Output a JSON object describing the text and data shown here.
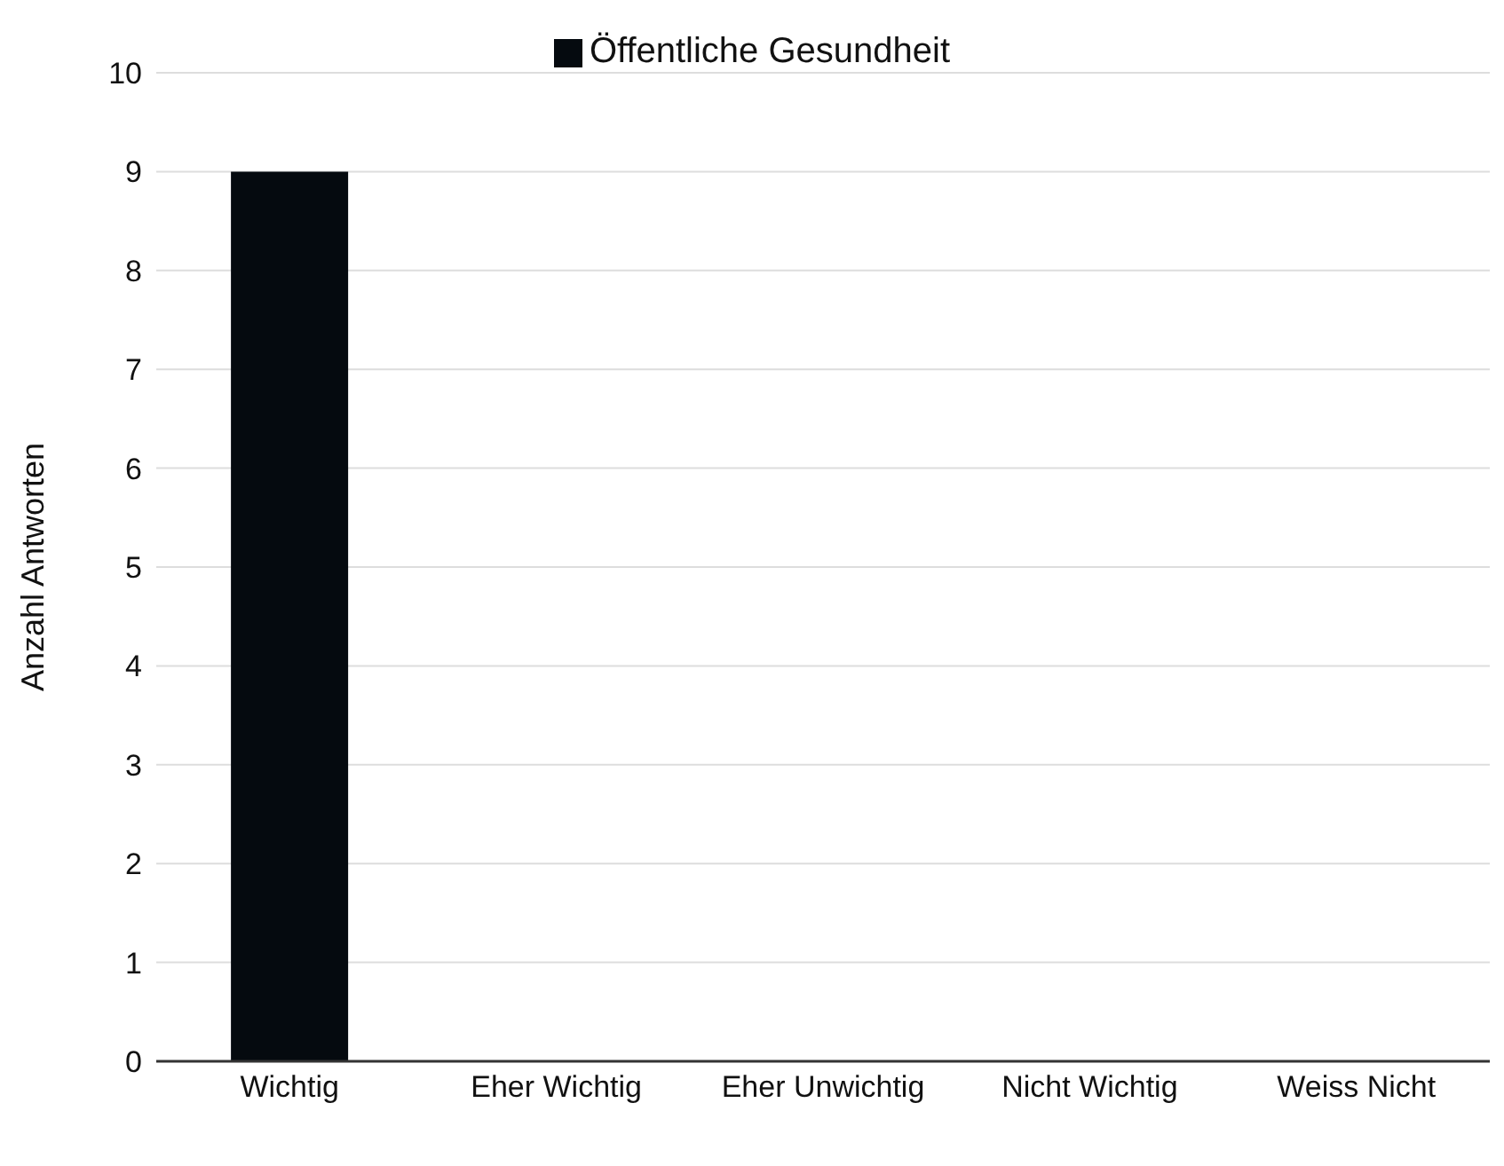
{
  "chart_data": {
    "type": "bar",
    "ylabel": "Anzahl Antworten",
    "categories": [
      "Wichtig",
      "Eher Wichtig",
      "Eher Unwichtig",
      "Nicht Wichtig",
      "Weiss Nicht"
    ],
    "series": [
      {
        "name": "Öffentliche Gesundheit",
        "color": "#050a0f",
        "values": [
          9,
          0,
          0,
          0,
          0
        ]
      }
    ],
    "ylim": [
      0,
      10
    ],
    "yticks": [
      0,
      1,
      2,
      3,
      4,
      5,
      6,
      7,
      8,
      9,
      10
    ],
    "grid": "y",
    "legend": "top"
  }
}
